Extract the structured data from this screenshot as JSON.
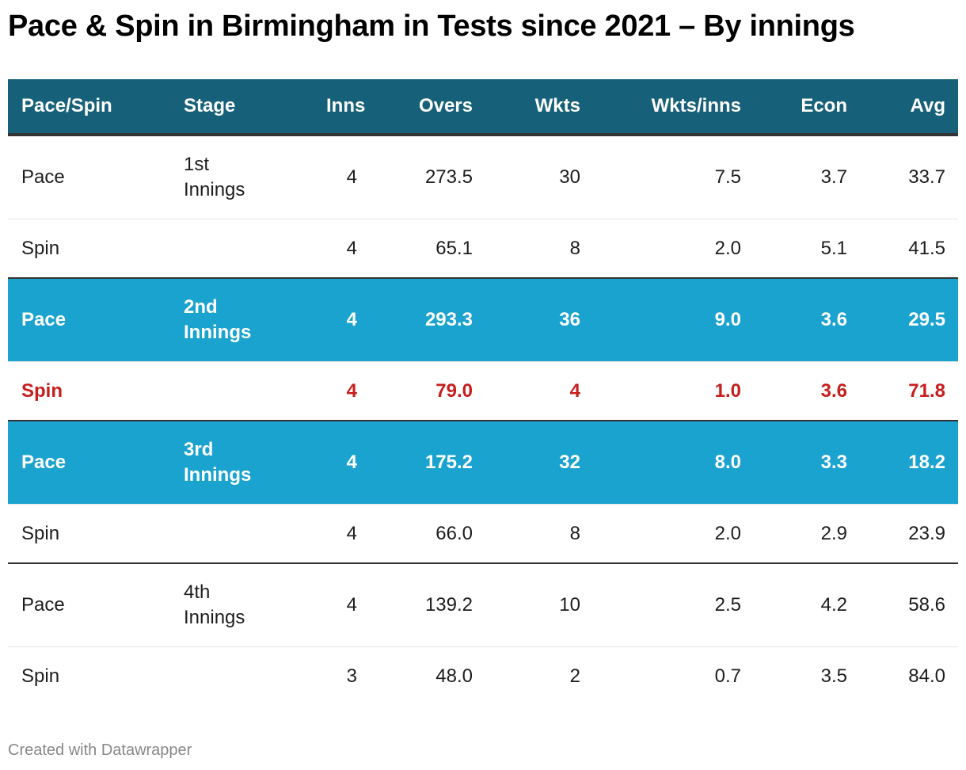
{
  "title": "Pace & Spin in Birmingham in Tests since 2021 – By innings",
  "footer": "Created with Datawrapper",
  "colors": {
    "header": "#176079",
    "highlight": "#1ba3cf",
    "red": "#c71e1d"
  },
  "chart_data": {
    "type": "table",
    "title": "Pace & Spin in Birmingham in Tests since 2021 – By innings",
    "columns": [
      "Pace/Spin",
      "Stage",
      "Inns",
      "Overs",
      "Wkts",
      "Wkts/inns",
      "Econ",
      "Avg"
    ],
    "rows": [
      [
        "Pace",
        "1st Innings",
        "4",
        "273.5",
        "30",
        "7.5",
        "3.7",
        "33.7"
      ],
      [
        "Spin",
        "",
        "4",
        "65.1",
        "8",
        "2.0",
        "5.1",
        "41.5"
      ],
      [
        "Pace",
        "2nd Innings",
        "4",
        "293.3",
        "36",
        "9.0",
        "3.6",
        "29.5"
      ],
      [
        "Spin",
        "",
        "4",
        "79.0",
        "4",
        "1.0",
        "3.6",
        "71.8"
      ],
      [
        "Pace",
        "3rd Innings",
        "4",
        "175.2",
        "32",
        "8.0",
        "3.3",
        "18.2"
      ],
      [
        "Spin",
        "",
        "4",
        "66.0",
        "8",
        "2.0",
        "2.9",
        "23.9"
      ],
      [
        "Pace",
        "4th Innings",
        "4",
        "139.2",
        "10",
        "2.5",
        "4.2",
        "58.6"
      ],
      [
        "Spin",
        "",
        "3",
        "48.0",
        "2",
        "0.7",
        "3.5",
        "84.0"
      ]
    ],
    "stage_lines": [
      [
        "1st",
        "Innings"
      ],
      [
        "2nd",
        "Innings"
      ],
      [
        "3rd",
        "Innings"
      ],
      [
        "4th",
        "Innings"
      ]
    ],
    "row_styles": [
      "normal",
      "normal",
      "highlight",
      "red",
      "highlight",
      "normal",
      "normal",
      "normal"
    ]
  }
}
